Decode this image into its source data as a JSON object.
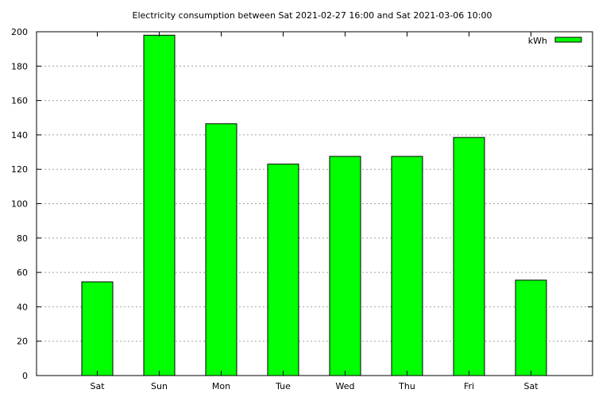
{
  "chart_data": {
    "type": "bar",
    "title": "Electricity consumption between Sat 2021-02-27 16:00 and Sat 2021-03-06 10:00",
    "xlabel": "",
    "ylabel": "",
    "categories": [
      "Sat",
      "Sun",
      "Mon",
      "Tue",
      "Wed",
      "Thu",
      "Fri",
      "Sat"
    ],
    "series": [
      {
        "name": "kWh",
        "values": [
          54.5,
          198,
          146.5,
          123,
          127.5,
          127.5,
          138.5,
          55.5
        ],
        "color": "#00ff00"
      }
    ],
    "ylim": [
      0,
      200
    ],
    "yticks": [
      "0",
      "20",
      "40",
      "60",
      "80",
      "100",
      "120",
      "140",
      "160",
      "180",
      "200"
    ],
    "grid": true,
    "legend_position": "top-right"
  }
}
